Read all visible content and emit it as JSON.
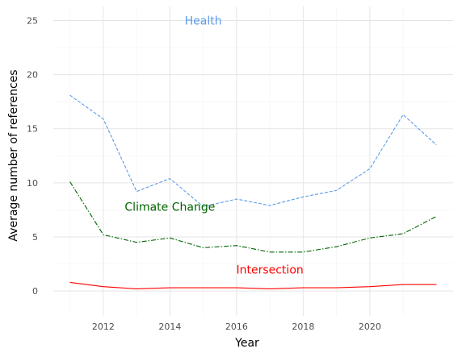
{
  "chart_data": {
    "type": "line",
    "title": "",
    "xlabel": "Year",
    "ylabel": "Average number of references",
    "xlim": [
      2010.5,
      2022.5
    ],
    "ylim": [
      -2.3,
      26.3
    ],
    "x_ticks": [
      2012,
      2014,
      2016,
      2018,
      2020
    ],
    "y_ticks": [
      0,
      5,
      10,
      15,
      20,
      25
    ],
    "grid": true,
    "legend": "none",
    "x": [
      2011,
      2012,
      2013,
      2014,
      2015,
      2016,
      2017,
      2018,
      2019,
      2020,
      2021,
      2022
    ],
    "series": [
      {
        "name": "Health",
        "color": "#5b9bea",
        "dash": "dashed",
        "values": [
          18.1,
          15.9,
          9.2,
          10.4,
          7.8,
          8.5,
          7.9,
          8.7,
          9.3,
          11.3,
          16.3,
          13.5
        ],
        "label_x": 2015,
        "label_y": 25
      },
      {
        "name": "Climate Change",
        "color": "#006400",
        "dash": "dashdot",
        "values": [
          10.1,
          5.2,
          4.5,
          4.9,
          4.0,
          4.2,
          3.6,
          3.6,
          4.1,
          4.9,
          5.3,
          6.9
        ],
        "label_x": 2014,
        "label_y": 7.8
      },
      {
        "name": "Intersection",
        "color": "#ff0000",
        "dash": "solid",
        "values": [
          0.8,
          0.4,
          0.2,
          0.3,
          0.3,
          0.3,
          0.2,
          0.3,
          0.3,
          0.4,
          0.6,
          0.6
        ],
        "label_x": 2017,
        "label_y": 2
      }
    ]
  }
}
